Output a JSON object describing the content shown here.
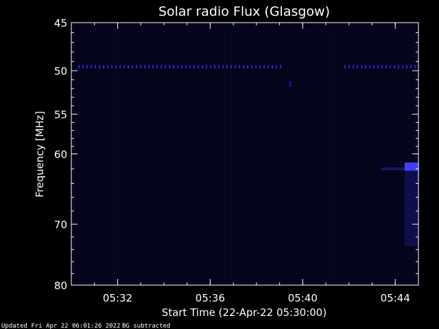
{
  "chart_data": {
    "type": "heatmap",
    "title": "Solar radio Flux (Glasgow)",
    "xlabel": "Start Time (22-Apr-22 05:30:00)",
    "ylabel": "Frequency [MHz]",
    "x_unit": "minutes after 05:30:00",
    "xlim": [
      0,
      15
    ],
    "ylim": [
      45,
      80
    ],
    "y_inverted": true,
    "y_scale": "log",
    "x_ticks": [
      {
        "value": 2,
        "label": "05:32"
      },
      {
        "value": 6,
        "label": "05:36"
      },
      {
        "value": 10,
        "label": "05:40"
      },
      {
        "value": 14,
        "label": "05:44"
      }
    ],
    "y_ticks": [
      {
        "value": 45,
        "label": "45"
      },
      {
        "value": 50,
        "label": "50"
      },
      {
        "value": 55,
        "label": "55"
      },
      {
        "value": 60,
        "label": "60"
      },
      {
        "value": 70,
        "label": "70"
      },
      {
        "value": 80,
        "label": "80"
      }
    ],
    "features": [
      {
        "name": "interference-line",
        "frequency": 49.6,
        "x_start": 0.3,
        "x_end": 9.1,
        "intensity": 0.8,
        "color": "#3030ff"
      },
      {
        "name": "interference-line",
        "frequency": 49.6,
        "x_start": 11.8,
        "x_end": 15,
        "intensity": 0.8,
        "color": "#3030ff"
      },
      {
        "name": "blip",
        "frequency": 51.5,
        "x_start": 9.4,
        "x_end": 9.5,
        "intensity": 0.6,
        "color": "#2020d0"
      },
      {
        "name": "burst",
        "frequency": 61.7,
        "x_start": 14.4,
        "x_end": 15,
        "intensity": 1.0,
        "color": "#4040ff"
      },
      {
        "name": "burst-tail",
        "frequency": 62.0,
        "x_start": 13.4,
        "x_end": 14.4,
        "intensity": 0.5,
        "color": "#2828c8"
      }
    ],
    "colors": {
      "background": "#000000",
      "plot_fill": "#04041a",
      "axes": "#ffffff"
    }
  },
  "footer": {
    "updated": "Updated Fri Apr 22 06:01:26 2022",
    "bg_note": "BG subtracted"
  }
}
